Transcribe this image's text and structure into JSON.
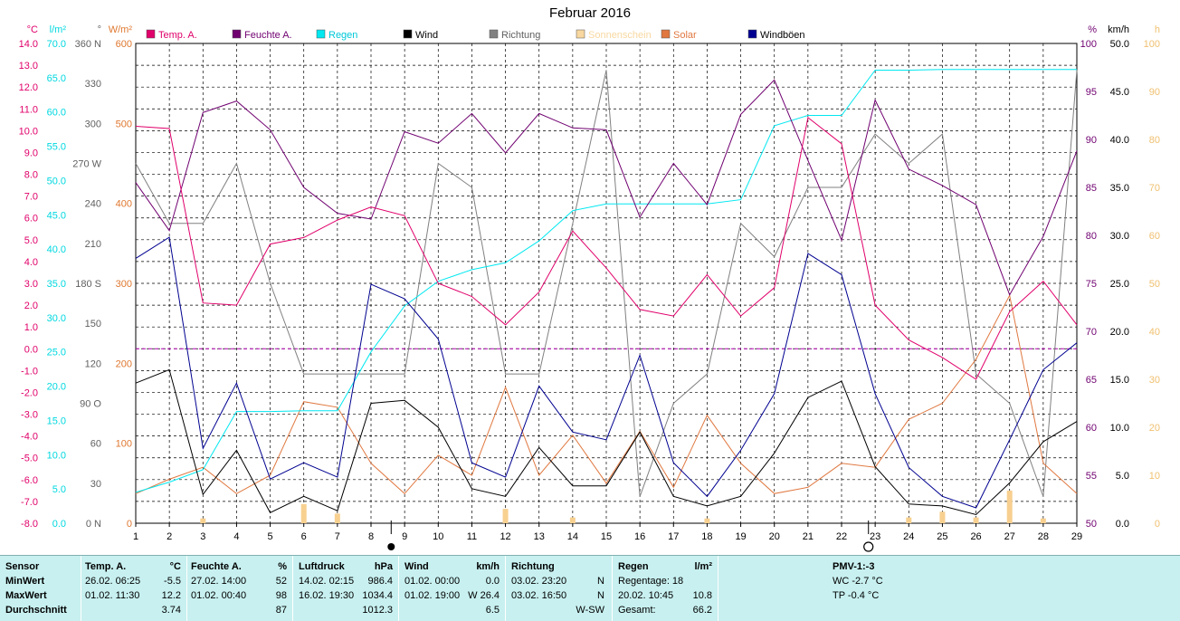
{
  "title": "Februar 2016",
  "left_axes": [
    {
      "unit": "°C",
      "color": "#e0006a",
      "ticks": [
        "14.0",
        "13.0",
        "12.0",
        "11.0",
        "10.0",
        "9.0",
        "8.0",
        "7.0",
        "6.0",
        "5.0",
        "4.0",
        "3.0",
        "2.0",
        "1.0",
        "0.0",
        "-1.0",
        "-2.0",
        "-3.0",
        "-4.0",
        "-5.0",
        "-6.0",
        "-7.0",
        "-8.0"
      ]
    },
    {
      "unit": "l/m²",
      "color": "#00d8e0",
      "ticks": [
        "70.0",
        "65.0",
        "60.0",
        "55.0",
        "50.0",
        "45.0",
        "40.0",
        "35.0",
        "30.0",
        "25.0",
        "20.0",
        "15.0",
        "10.0",
        "5.0",
        "0.0"
      ]
    },
    {
      "unit": "°",
      "color": "#606060",
      "ticks": [
        "360 N",
        "330",
        "300",
        "270 W",
        "240",
        "210",
        "180 S",
        "150",
        "120",
        "90 O",
        "60",
        "30",
        "0 N"
      ]
    },
    {
      "unit": "W/m²",
      "color": "#e07830",
      "ticks": [
        "600",
        "500",
        "400",
        "300",
        "200",
        "100",
        "0"
      ]
    }
  ],
  "right_axes": [
    {
      "unit": "%",
      "color": "#700070",
      "ticks": [
        "100",
        "95",
        "90",
        "85",
        "80",
        "75",
        "70",
        "65",
        "60",
        "55",
        "50"
      ]
    },
    {
      "unit": "km/h",
      "color": "#000000",
      "ticks": [
        "50.0",
        "45.0",
        "40.0",
        "35.0",
        "30.0",
        "25.0",
        "20.0",
        "15.0",
        "10.0",
        "5.0",
        "0.0"
      ]
    },
    {
      "unit": "h",
      "color": "#f0c070",
      "ticks": [
        "100",
        "90",
        "80",
        "70",
        "60",
        "50",
        "40",
        "30",
        "20",
        "10",
        "0"
      ]
    }
  ],
  "legend": [
    {
      "label": "Temp. A.",
      "color": "#e0006a",
      "text_color": "#e0006a"
    },
    {
      "label": "Feuchte A.",
      "color": "#700070",
      "text_color": "#700070"
    },
    {
      "label": "Regen",
      "color": "#00e8f0",
      "text_color": "#00c8d8"
    },
    {
      "label": "Wind",
      "color": "#000000",
      "text_color": "#000000"
    },
    {
      "label": "Richtung",
      "color": "#808080",
      "text_color": "#606060"
    },
    {
      "label": "Sonnenschein",
      "color": "#f8d8a0",
      "text_color": "#f8d8a0"
    },
    {
      "label": "Solar",
      "color": "#e07840",
      "text_color": "#e07840"
    },
    {
      "label": "Windböen",
      "color": "#000090",
      "text_color": "#000000"
    }
  ],
  "chart_data": {
    "type": "line",
    "title": "Februar 2016",
    "x": [
      1,
      2,
      3,
      4,
      5,
      6,
      7,
      8,
      9,
      10,
      11,
      12,
      13,
      14,
      15,
      16,
      17,
      18,
      19,
      20,
      21,
      22,
      23,
      24,
      25,
      26,
      27,
      28,
      29
    ],
    "grid": true,
    "legend_position": "top",
    "series": [
      {
        "name": "Temp. A.",
        "axis": "°C",
        "ylim": [
          -8,
          14
        ],
        "color": "#e0006a",
        "values": [
          10.2,
          10.1,
          2.1,
          2.0,
          4.8,
          5.1,
          5.9,
          6.5,
          6.1,
          3.0,
          2.4,
          1.1,
          2.6,
          5.4,
          3.7,
          1.8,
          1.5,
          3.4,
          1.5,
          2.8,
          10.6,
          9.4,
          2.0,
          0.4,
          -0.4,
          -1.4,
          1.7,
          3.1,
          1.1
        ]
      },
      {
        "name": "Feuchte A.",
        "axis": "%",
        "ylim": [
          50,
          100
        ],
        "color": "#700070",
        "values": [
          85.5,
          80.5,
          92.8,
          94.0,
          91.0,
          85.0,
          82.3,
          81.7,
          90.8,
          89.6,
          92.7,
          88.6,
          92.7,
          91.2,
          91.0,
          81.9,
          87.5,
          83.2,
          92.6,
          96.2,
          87.8,
          79.5,
          94.1,
          86.9,
          85.2,
          83.2,
          73.8,
          79.9,
          88.8
        ]
      },
      {
        "name": "Regen",
        "axis": "l/m²",
        "ylim": [
          0,
          70
        ],
        "color": "#00e8f0",
        "values": [
          4.5,
          6.0,
          7.8,
          16.3,
          16.3,
          16.4,
          16.4,
          25.0,
          31.7,
          35.3,
          37.0,
          38.0,
          41.2,
          45.6,
          46.6,
          46.6,
          46.6,
          46.6,
          47.2,
          58.0,
          59.5,
          59.5,
          66.1,
          66.1,
          66.2,
          66.2,
          66.2,
          66.2,
          66.2
        ]
      },
      {
        "name": "Wind",
        "axis": "km/h",
        "ylim": [
          0,
          50
        ],
        "color": "#000000",
        "values": [
          14.6,
          16.0,
          3.0,
          7.6,
          1.1,
          2.8,
          1.3,
          12.5,
          12.8,
          10.0,
          3.6,
          2.8,
          7.9,
          3.9,
          3.9,
          9.5,
          2.8,
          1.8,
          2.8,
          7.3,
          13.1,
          14.8,
          5.9,
          2.0,
          1.8,
          0.9,
          4.2,
          8.5,
          10.6
        ]
      },
      {
        "name": "Richtung",
        "axis": "°",
        "ylim": [
          0,
          360
        ],
        "color": "#808080",
        "values": [
          270,
          225,
          225,
          270,
          180,
          112,
          112,
          112,
          112,
          270,
          252,
          112,
          112,
          225,
          340,
          20,
          90,
          112,
          225,
          200,
          252,
          252,
          292,
          270,
          292,
          112,
          90,
          20,
          340
        ]
      },
      {
        "name": "Solar",
        "axis": "W/m²",
        "ylim": [
          0,
          600
        ],
        "color": "#e07840",
        "values": [
          37,
          55,
          70,
          37,
          60,
          152,
          145,
          75,
          37,
          85,
          60,
          170,
          60,
          110,
          50,
          115,
          45,
          135,
          75,
          37,
          45,
          75,
          70,
          130,
          150,
          205,
          285,
          75,
          37
        ]
      },
      {
        "name": "Windböen",
        "axis": "km/h",
        "ylim": [
          0,
          50
        ],
        "color": "#000090",
        "values": [
          27.6,
          29.8,
          7.8,
          14.6,
          4.6,
          6.3,
          4.8,
          24.9,
          23.4,
          19.2,
          6.3,
          4.8,
          14.3,
          9.5,
          8.7,
          17.5,
          6.3,
          2.8,
          7.6,
          13.5,
          28.1,
          25.9,
          13.5,
          5.8,
          2.8,
          1.6,
          8.7,
          16.0,
          18.8
        ]
      },
      {
        "name": "Sonnenschein",
        "type": "bar",
        "axis": "h",
        "ylim": [
          0,
          100
        ],
        "values": [
          0,
          0,
          1,
          0,
          0,
          4,
          2,
          0,
          0,
          0,
          0,
          3,
          0,
          1.2,
          0,
          0,
          0,
          1,
          0,
          0,
          0,
          0,
          0,
          1.2,
          2.4,
          1.2,
          6.8,
          1,
          0
        ]
      }
    ],
    "annotations": [
      "full moon 8.5 (●)",
      "new moon 22.5 (○)",
      "dashed 0 °C line"
    ]
  },
  "stats": {
    "labels": {
      "sensor": "Sensor",
      "min": "MinWert",
      "max": "MaxWert",
      "avg": "Durchschnitt"
    },
    "temp": {
      "head": "Temp. A.",
      "unit": "°C",
      "min_dt": "26.02.  06:25",
      "min_val": "-5.5",
      "max_dt": "01.02.  11:30",
      "max_val": "12.2",
      "avg": "3.74"
    },
    "feuchte": {
      "head": "Feuchte A.",
      "unit": "%",
      "min_dt": "27.02.  14:00",
      "min_val": "52",
      "max_dt": "01.02.  00:40",
      "max_val": "98",
      "avg": "87"
    },
    "luftdruck": {
      "head": "Luftdruck",
      "unit": "hPa",
      "min_dt": "14.02.  02:15",
      "min_val": "986.4",
      "max_dt": "16.02.  19:30",
      "max_val": "1034.4",
      "avg": "1012.3"
    },
    "wind": {
      "head": "Wind",
      "unit": "km/h",
      "min_dt": "01.02.  00:00",
      "min_val": "0.0",
      "max_dt": "01.02.  19:00",
      "max_val": "W 26.4",
      "avg": "6.5"
    },
    "richtung": {
      "head": "Richtung",
      "min_dt": "03.02.  23:20",
      "min_val": "N",
      "max_dt": "03.02.  16:50",
      "max_val": "N",
      "avg": "W-SW"
    },
    "regen": {
      "head": "Regen",
      "unit": "l/m²",
      "line1": "Regentage: 18",
      "line2_dt": "20.02.  10:45",
      "line2_val": "10.8",
      "line3": "Gesamt:",
      "line3_val": "66.2"
    },
    "pmv": {
      "head": "PMV-1:-3",
      "wc": "WC -2.7 °C",
      "tp": "TP -0.4 °C"
    }
  }
}
